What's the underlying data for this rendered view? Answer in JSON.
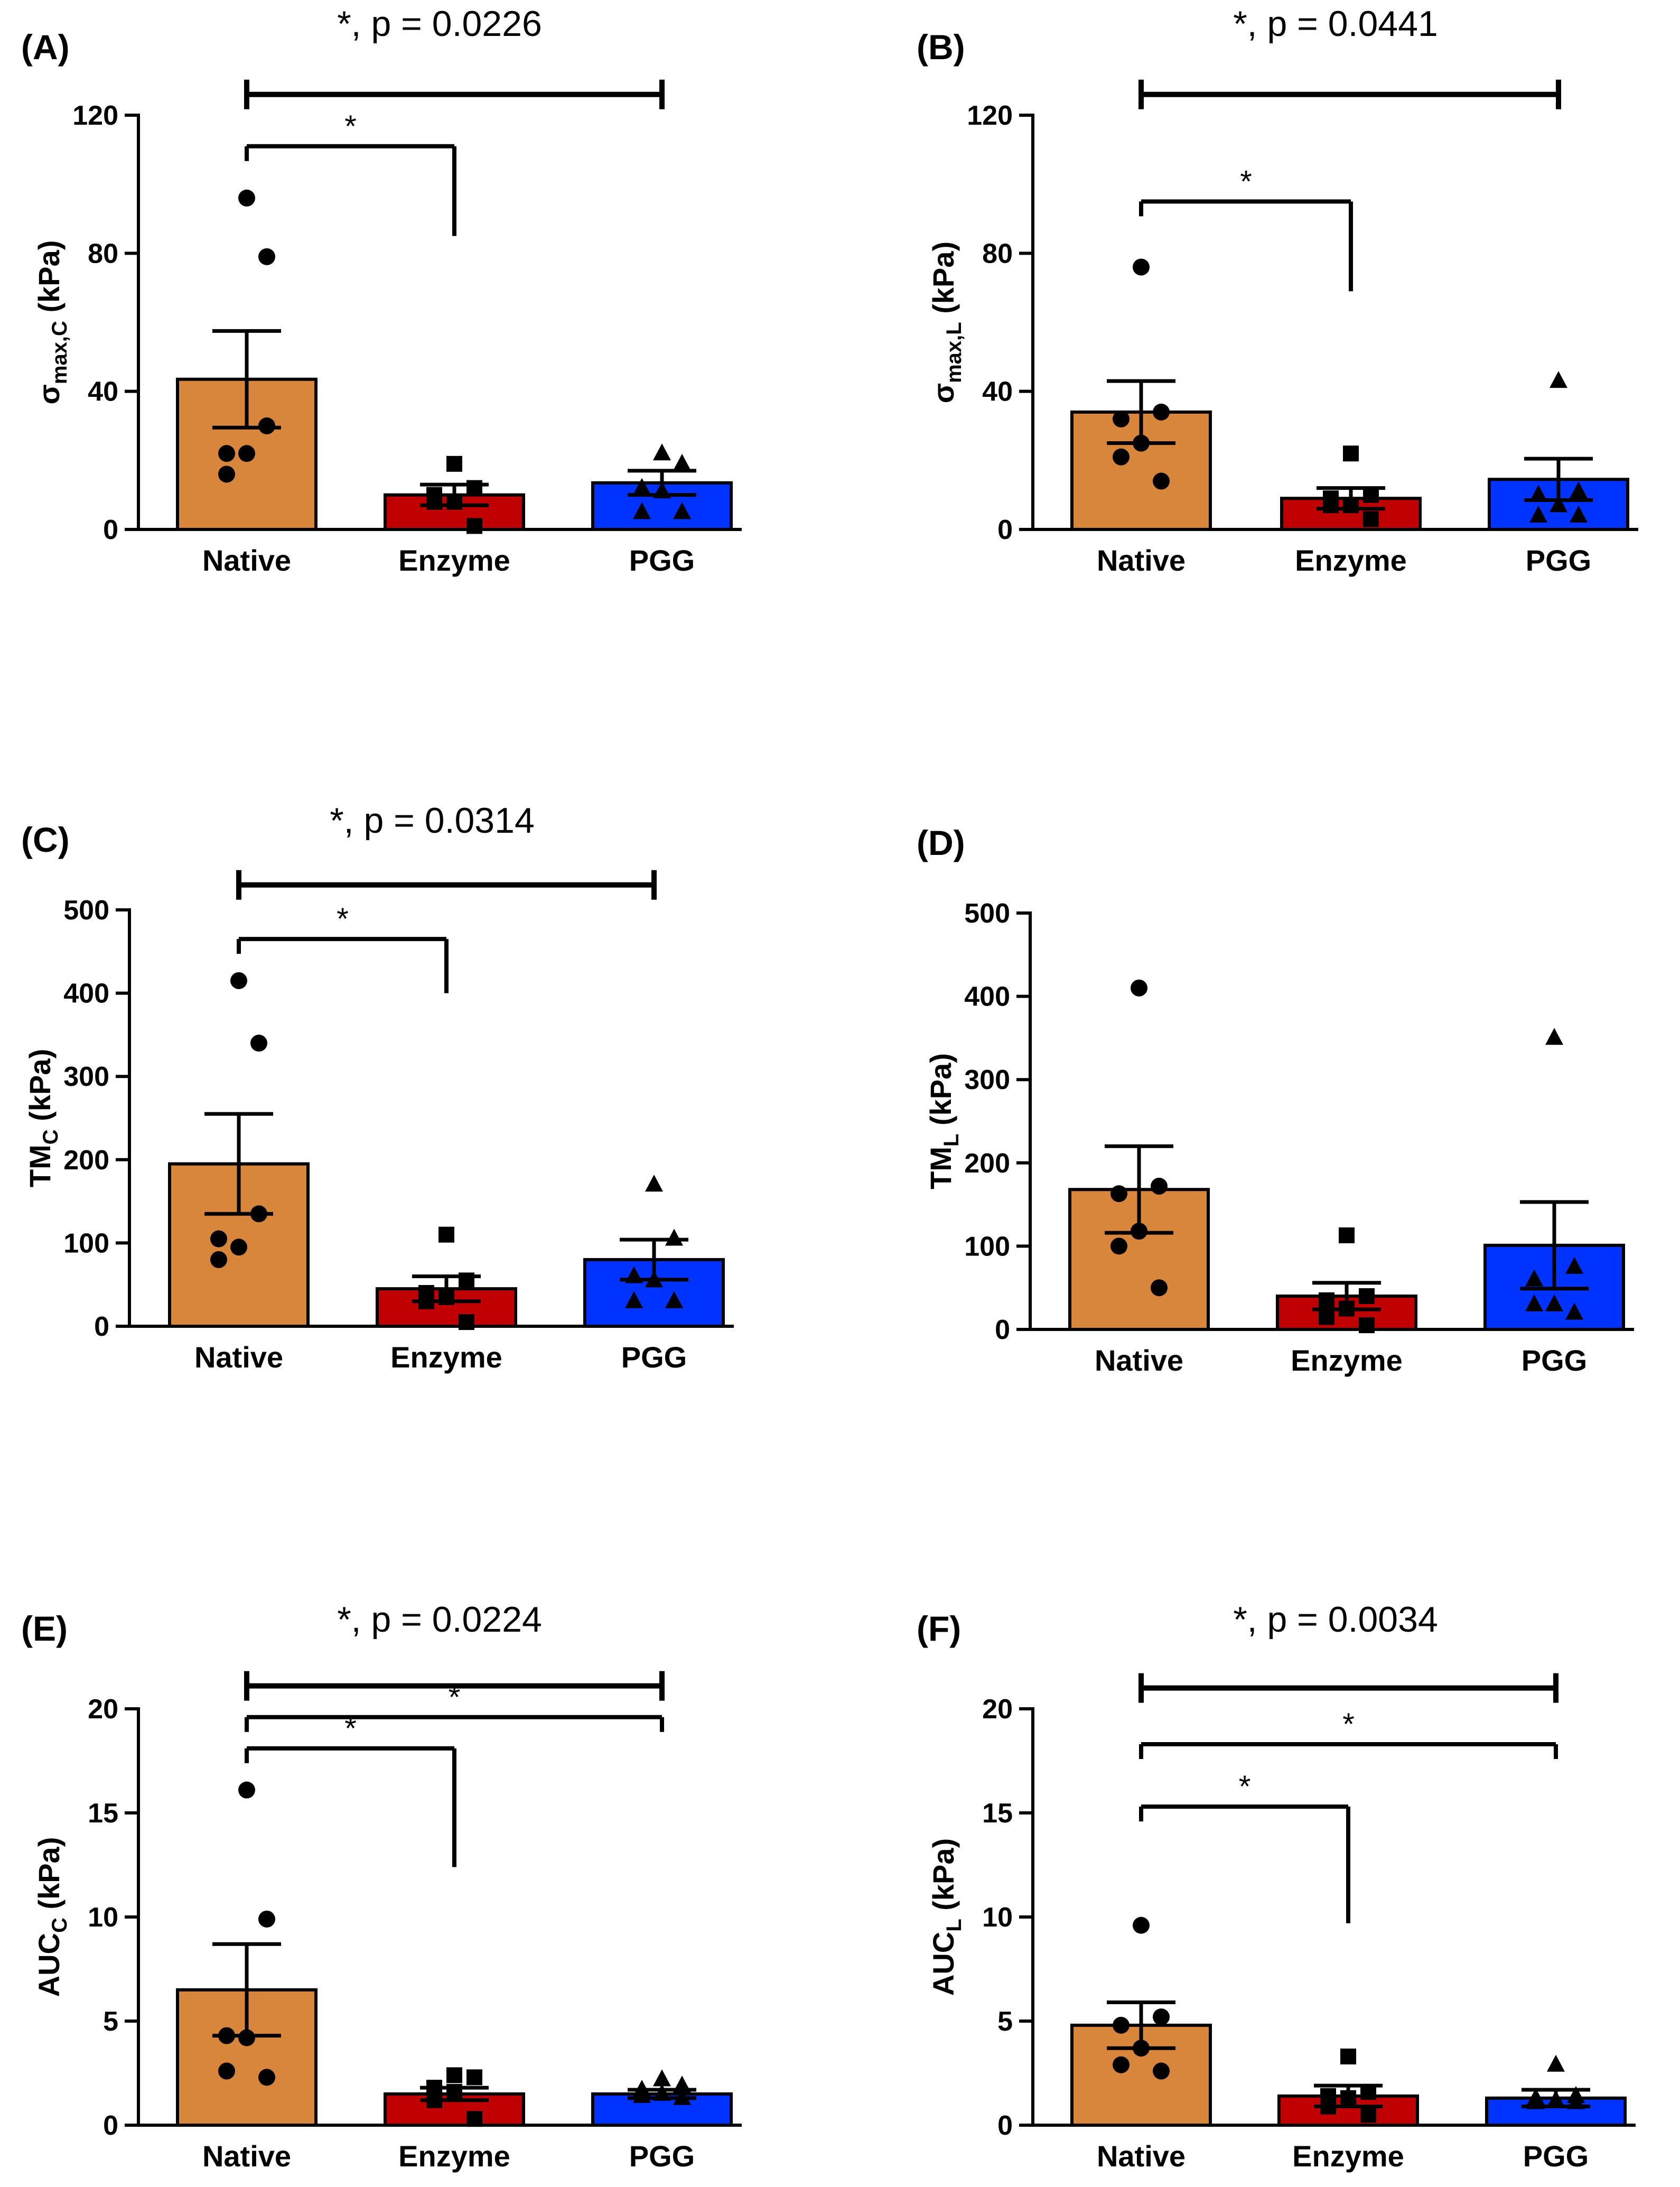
{
  "chart_data": [
    {
      "type": "bar",
      "panel_label": "(A)",
      "title": "*, p = 0.0226",
      "ylabel_main": "σ",
      "ylabel_sub": "max,C",
      "ylabel_unit": " (kPa)",
      "ylim": [
        0,
        120
      ],
      "yticks": [
        0,
        40,
        80,
        120
      ],
      "categories": [
        "Native",
        "Enzyme",
        "PGG"
      ],
      "colors": [
        "#d9863d",
        "#c00000",
        "#0033ff"
      ],
      "markers": [
        "circle",
        "square",
        "triangle"
      ],
      "means": [
        43.5,
        10,
        13.5
      ],
      "sems": [
        14,
        3,
        3.5
      ],
      "points": [
        [
          96,
          79,
          22,
          22,
          16,
          30
        ],
        [
          19,
          12,
          10,
          8,
          8,
          1
        ],
        [
          22,
          19,
          12,
          11,
          5,
          5
        ]
      ],
      "comparisons": [
        {
          "from": 0,
          "to": 2,
          "label": "",
          "y": 126,
          "thick": true
        },
        {
          "from": 0,
          "to": 1,
          "label": "*",
          "y": 111,
          "drop_to": 85
        }
      ]
    },
    {
      "type": "bar",
      "panel_label": "(B)",
      "title": "*, p = 0.0441",
      "ylabel_main": "σ",
      "ylabel_sub": "max,L",
      "ylabel_unit": " (kPa)",
      "ylim": [
        0,
        120
      ],
      "yticks": [
        0,
        40,
        80,
        120
      ],
      "categories": [
        "Native",
        "Enzyme",
        "PGG"
      ],
      "colors": [
        "#d9863d",
        "#c00000",
        "#0033ff"
      ],
      "markers": [
        "circle",
        "square",
        "triangle"
      ],
      "means": [
        34,
        9,
        14.5
      ],
      "sems": [
        9,
        3,
        6
      ],
      "points": [
        [
          76,
          34,
          32,
          25,
          21,
          14
        ],
        [
          22,
          10,
          9,
          7,
          7,
          3
        ],
        [
          43,
          11,
          10,
          7,
          4,
          4
        ]
      ],
      "comparisons": [
        {
          "from": 0,
          "to": 2,
          "label": "",
          "y": 126,
          "thick": true
        },
        {
          "from": 0,
          "to": 1,
          "label": "*",
          "y": 95,
          "drop_to": 69
        }
      ]
    },
    {
      "type": "bar",
      "panel_label": "(C)",
      "title": "*, p = 0.0314",
      "ylabel_main": "TM",
      "ylabel_sub": "C",
      "ylabel_unit": " (kPa)",
      "ylim": [
        0,
        500
      ],
      "yticks": [
        0,
        100,
        200,
        300,
        400,
        500
      ],
      "categories": [
        "Native",
        "Enzyme",
        "PGG"
      ],
      "colors": [
        "#d9863d",
        "#c00000",
        "#0033ff"
      ],
      "markers": [
        "circle",
        "square",
        "triangle"
      ],
      "means": [
        195,
        45,
        80
      ],
      "sems": [
        60,
        15,
        24
      ],
      "points": [
        [
          415,
          340,
          105,
          95,
          80,
          135
        ],
        [
          110,
          55,
          40,
          35,
          30,
          5
        ],
        [
          170,
          105,
          60,
          55,
          30,
          30
        ]
      ],
      "comparisons": [
        {
          "from": 0,
          "to": 2,
          "label": "",
          "y": 530,
          "thick": true
        },
        {
          "from": 0,
          "to": 1,
          "label": "*",
          "y": 465,
          "drop_to": 400
        }
      ]
    },
    {
      "type": "bar",
      "panel_label": "(D)",
      "title": "",
      "ylabel_main": "TM",
      "ylabel_sub": "L",
      "ylabel_unit": " (kPa)",
      "ylim": [
        0,
        500
      ],
      "yticks": [
        0,
        100,
        200,
        300,
        400,
        500
      ],
      "categories": [
        "Native",
        "Enzyme",
        "PGG"
      ],
      "colors": [
        "#d9863d",
        "#c00000",
        "#0033ff"
      ],
      "markers": [
        "circle",
        "square",
        "triangle"
      ],
      "means": [
        168,
        40,
        101
      ],
      "sems": [
        52,
        16,
        52
      ],
      "points": [
        [
          410,
          172,
          163,
          118,
          100,
          50
        ],
        [
          113,
          40,
          35,
          25,
          15,
          5
        ],
        [
          350,
          75,
          60,
          30,
          30,
          20
        ]
      ],
      "comparisons": []
    },
    {
      "type": "bar",
      "panel_label": "(E)",
      "title": "*, p = 0.0224",
      "ylabel_main": "AUC",
      "ylabel_sub": "C",
      "ylabel_unit": " (kPa)",
      "ylim": [
        0,
        20
      ],
      "yticks": [
        0,
        5,
        10,
        15,
        20
      ],
      "categories": [
        "Native",
        "Enzyme",
        "PGG"
      ],
      "colors": [
        "#d9863d",
        "#c00000",
        "#0033ff"
      ],
      "markers": [
        "circle",
        "square",
        "triangle"
      ],
      "means": [
        6.5,
        1.5,
        1.5
      ],
      "sems": [
        2.2,
        0.3,
        0.2
      ],
      "points": [
        [
          16.1,
          9.9,
          4.3,
          4.2,
          2.6,
          2.3
        ],
        [
          2.4,
          2.3,
          1.8,
          1.6,
          1.2,
          0.3
        ],
        [
          2.2,
          1.9,
          1.7,
          1.5,
          1.4,
          1.3
        ]
      ],
      "comparisons": [
        {
          "from": 0,
          "to": 2,
          "label": "",
          "y": 21.1,
          "thick": true
        },
        {
          "from": 0,
          "to": 2,
          "label": "*",
          "y": 19.6
        },
        {
          "from": 0,
          "to": 1,
          "label": "*",
          "y": 18.1,
          "drop_to": 12.4
        }
      ]
    },
    {
      "type": "bar",
      "panel_label": "(F)",
      "title": "*, p = 0.0034",
      "ylabel_main": "AUC",
      "ylabel_sub": "L",
      "ylabel_unit": " (kPa)",
      "ylim": [
        0,
        20
      ],
      "yticks": [
        0,
        5,
        10,
        15,
        20
      ],
      "categories": [
        "Native",
        "Enzyme",
        "PGG"
      ],
      "colors": [
        "#d9863d",
        "#c00000",
        "#0033ff"
      ],
      "markers": [
        "circle",
        "square",
        "triangle"
      ],
      "means": [
        4.8,
        1.4,
        1.3
      ],
      "sems": [
        1.1,
        0.5,
        0.4
      ],
      "points": [
        [
          9.6,
          5.2,
          4.8,
          3.7,
          2.9,
          2.6
        ],
        [
          3.3,
          1.6,
          1.4,
          1.3,
          0.9,
          0.5
        ],
        [
          2.9,
          1.4,
          1.3,
          1.2,
          1.1,
          1.1
        ]
      ],
      "comparisons": [
        {
          "from": 0,
          "to": 2,
          "label": "",
          "y": 21.0,
          "thick": true
        },
        {
          "from": 0,
          "to": 2,
          "label": "*",
          "y": 18.3
        },
        {
          "from": 0,
          "to": 1,
          "label": "*",
          "y": 15.3,
          "drop_to": 9.7
        }
      ]
    }
  ]
}
